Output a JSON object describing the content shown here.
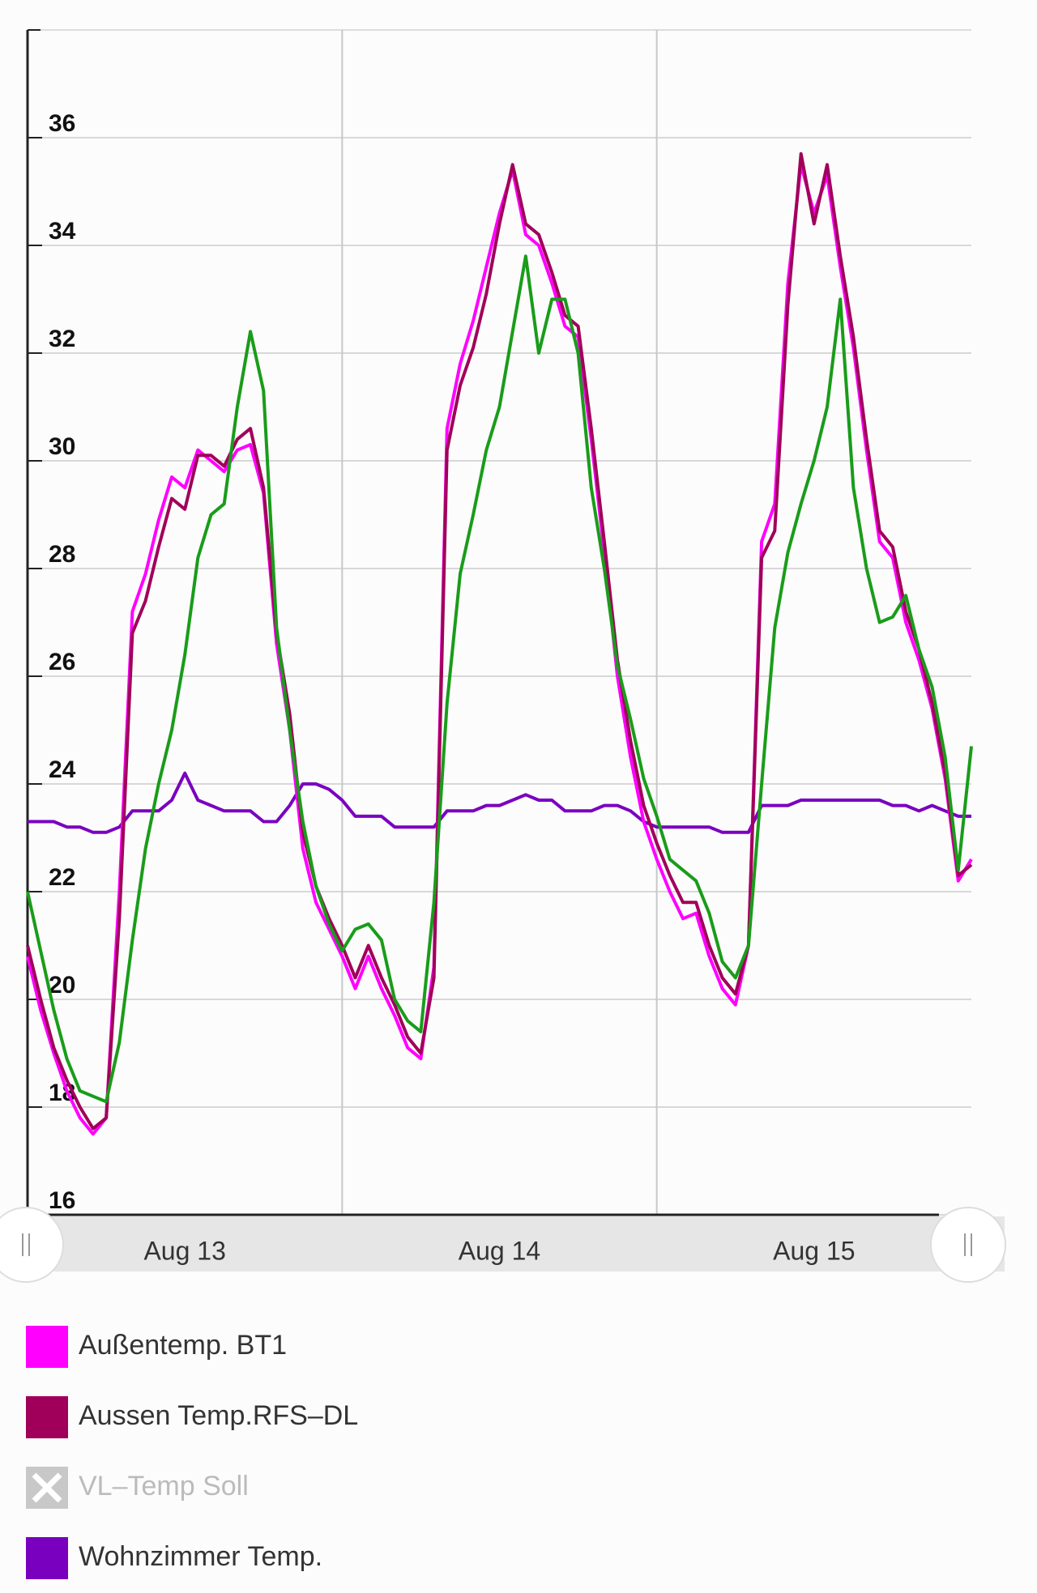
{
  "chart_data": {
    "type": "line",
    "x": [
      0,
      1,
      2,
      3,
      4,
      5,
      6,
      7,
      8,
      9,
      10,
      11,
      12,
      13,
      14,
      15,
      16,
      17,
      18,
      19,
      20,
      21,
      22,
      23,
      24,
      25,
      26,
      27,
      28,
      29,
      30,
      31,
      32,
      33,
      34,
      35,
      36,
      37,
      38,
      39,
      40,
      41,
      42,
      43,
      44,
      45,
      46,
      47,
      48,
      49,
      50,
      51,
      52,
      53,
      54,
      55,
      56,
      57,
      58,
      59,
      60,
      61,
      62,
      63,
      64,
      65,
      66,
      67,
      68,
      69,
      70,
      71,
      72
    ],
    "xlim": [
      0,
      72
    ],
    "xticks": [
      {
        "value": 12,
        "label": "Aug 13"
      },
      {
        "value": 36,
        "label": "Aug 14"
      },
      {
        "value": 60,
        "label": "Aug 15"
      }
    ],
    "xgrid": [
      24,
      48
    ],
    "ylim": [
      16,
      38
    ],
    "yticks": [
      16,
      18,
      20,
      22,
      24,
      26,
      28,
      30,
      32,
      34,
      36
    ],
    "grid": true,
    "series": [
      {
        "name": "Außentemp. BT1",
        "color": "#ff00ff",
        "visible": true,
        "values": [
          20.8,
          19.8,
          19.0,
          18.3,
          17.8,
          17.5,
          17.8,
          22.0,
          27.2,
          27.9,
          28.9,
          29.7,
          29.5,
          30.2,
          30.0,
          29.8,
          30.2,
          30.3,
          29.4,
          26.6,
          25.0,
          22.8,
          21.8,
          21.3,
          20.8,
          20.2,
          20.8,
          20.2,
          19.7,
          19.1,
          18.9,
          20.6,
          30.6,
          31.8,
          32.6,
          33.6,
          34.6,
          35.4,
          34.2,
          34.0,
          33.3,
          32.5,
          32.3,
          30.4,
          28.3,
          26.0,
          24.5,
          23.3,
          22.6,
          22.0,
          21.5,
          21.6,
          20.8,
          20.2,
          19.9,
          21.0,
          28.5,
          29.2,
          33.3,
          35.5,
          34.6,
          35.3,
          33.6,
          32.1,
          30.2,
          28.5,
          28.2,
          27.0,
          26.3,
          25.4,
          24.1,
          22.2,
          22.6
        ]
      },
      {
        "name": "Aussen Temp.RFS–DL",
        "color": "#a0005a",
        "visible": true,
        "values": [
          21.0,
          20.0,
          19.1,
          18.5,
          18.0,
          17.6,
          17.8,
          21.5,
          26.8,
          27.4,
          28.4,
          29.3,
          29.1,
          30.1,
          30.1,
          29.9,
          30.4,
          30.6,
          29.5,
          26.8,
          25.3,
          23.1,
          22.1,
          21.5,
          21.0,
          20.4,
          21.0,
          20.4,
          19.9,
          19.3,
          19.0,
          20.4,
          30.2,
          31.4,
          32.1,
          33.1,
          34.4,
          35.5,
          34.4,
          34.2,
          33.5,
          32.7,
          32.5,
          30.6,
          28.5,
          26.3,
          24.8,
          23.6,
          22.9,
          22.3,
          21.8,
          21.8,
          21.0,
          20.4,
          20.1,
          21.0,
          28.2,
          28.7,
          32.9,
          35.7,
          34.4,
          35.5,
          33.8,
          32.3,
          30.4,
          28.7,
          28.4,
          27.2,
          26.5,
          25.5,
          24.2,
          22.3,
          22.5
        ]
      },
      {
        "name": "VL–Temp Soll",
        "color": "#c8c8c8",
        "visible": false
      },
      {
        "name": "Wohnzimmer Temp.",
        "color": "#7a00c0",
        "visible": true,
        "values": [
          23.3,
          23.3,
          23.3,
          23.2,
          23.2,
          23.1,
          23.1,
          23.2,
          23.5,
          23.5,
          23.5,
          23.7,
          24.2,
          23.7,
          23.6,
          23.5,
          23.5,
          23.5,
          23.3,
          23.3,
          23.6,
          24.0,
          24.0,
          23.9,
          23.7,
          23.4,
          23.4,
          23.4,
          23.2,
          23.2,
          23.2,
          23.2,
          23.5,
          23.5,
          23.5,
          23.6,
          23.6,
          23.7,
          23.8,
          23.7,
          23.7,
          23.5,
          23.5,
          23.5,
          23.6,
          23.6,
          23.5,
          23.3,
          23.2,
          23.2,
          23.2,
          23.2,
          23.2,
          23.1,
          23.1,
          23.1,
          23.6,
          23.6,
          23.6,
          23.7,
          23.7,
          23.7,
          23.7,
          23.7,
          23.7,
          23.7,
          23.6,
          23.6,
          23.5,
          23.6,
          23.5,
          23.4,
          23.4
        ]
      },
      {
        "color": "#1a9c1a",
        "visible": true,
        "values": [
          22.0,
          20.9,
          19.8,
          18.9,
          18.3,
          18.2,
          18.1,
          19.2,
          21.1,
          22.8,
          24.0,
          25.0,
          26.4,
          28.2,
          29.0,
          29.2,
          31.0,
          32.4,
          31.3,
          26.9,
          25.0,
          23.3,
          22.1,
          21.4,
          20.9,
          21.3,
          21.4,
          21.1,
          20.0,
          19.6,
          19.4,
          21.8,
          25.5,
          27.9,
          29.0,
          30.2,
          31.0,
          32.4,
          33.8,
          32.0,
          33.0,
          33.0,
          32.0,
          29.5,
          28.0,
          26.2,
          25.2,
          24.1,
          23.4,
          22.6,
          22.4,
          22.2,
          21.6,
          20.7,
          20.4,
          21.0,
          24.0,
          26.9,
          28.3,
          29.2,
          30.0,
          31.0,
          33.0,
          29.5,
          28.0,
          27.0,
          27.1,
          27.5,
          26.5,
          25.8,
          24.5,
          22.4,
          24.7
        ]
      }
    ]
  }
}
